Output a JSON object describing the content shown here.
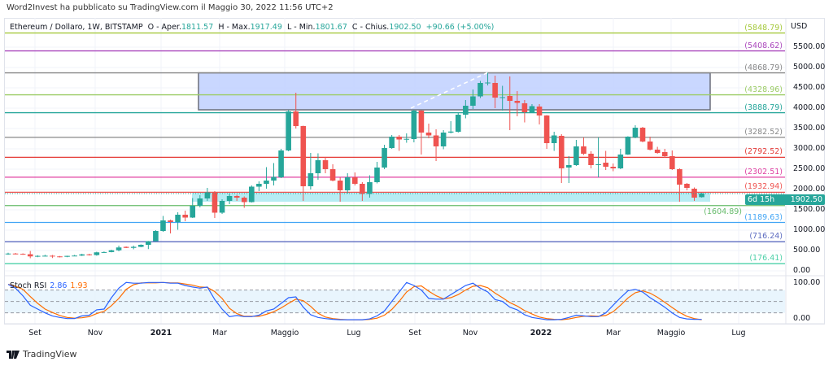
{
  "header": {
    "published": "Word2Invest ha pubblicato su TradingView.com il Maggio 30, 2022 11:56 UTC+2"
  },
  "legend": {
    "symbol": "Ethereum / Dollaro, 1W, BITSTAMP",
    "open_label": "O - Aper.",
    "open": "1811.57",
    "high_label": "H - Max.",
    "high": "1917.49",
    "low_label": "L - Min.",
    "low": "1801.67",
    "close_label": "C - Chius.",
    "close": "1902.50",
    "change": "+90.66 (+5.00%)"
  },
  "price_axis": {
    "currency": "USD",
    "ticks": [
      "5500.00",
      "5000.00",
      "4500.00",
      "4000.00",
      "3500.00",
      "3000.00",
      "2500.00",
      "2000.00",
      "1500.00",
      "1000.00",
      "500.00",
      "0.00"
    ]
  },
  "last_price": {
    "value": "1902.50",
    "countdown": "6d 15h",
    "color": "#26a69a"
  },
  "levels": [
    {
      "label": "(5848.79)",
      "value": 5848.79,
      "color": "#a5c93c"
    },
    {
      "label": "(5408.62)",
      "value": 5408.62,
      "color": "#ab47bc"
    },
    {
      "label": "(4868.79)",
      "value": 4868.79,
      "color": "#888888"
    },
    {
      "label": "(4328.96)",
      "value": 4328.96,
      "color": "#9ccc65"
    },
    {
      "label": "(3888.79)",
      "value": 3888.79,
      "color": "#26a69a"
    },
    {
      "label": "(3282.52)",
      "value": 3282.52,
      "color": "#888888"
    },
    {
      "label": "(2792.52)",
      "value": 2792.52,
      "color": "#e53935"
    },
    {
      "label": "(2302.51)",
      "value": 2302.51,
      "color": "#e040a0"
    },
    {
      "label": "(1932.94)",
      "value": 1932.94,
      "color": "#ef5350"
    },
    {
      "label": "(1604.89)",
      "value": 1604.89,
      "color": "#66bb6a"
    },
    {
      "label": "(1189.63)",
      "value": 1189.63,
      "color": "#42a5f5"
    },
    {
      "label": "(716.24)",
      "value": 716.24,
      "color": "#5c6bc0"
    },
    {
      "label": "(176.41)",
      "value": 176.41,
      "color": "#4dd0a8"
    }
  ],
  "time_axis": [
    "Set",
    "Nov",
    "2021",
    "Mar",
    "Maggio",
    "Lug",
    "Set",
    "Nov",
    "2022",
    "Mar",
    "Maggio",
    "Lug"
  ],
  "rsi": {
    "label": "Stoch RSI",
    "k": "2.86",
    "d": "1.93",
    "ticks": [
      "100.00",
      "0.00"
    ],
    "k_color": "#2962ff",
    "d_color": "#ff6d00"
  },
  "brand": {
    "name": "TradingView"
  },
  "chart_data": {
    "type": "candlestick",
    "symbol": "Ethereum / Dollaro",
    "interval": "1W",
    "ylim": [
      0,
      5500
    ],
    "colors": {
      "up": "#26a69a",
      "down": "#ef5350"
    },
    "zones": [
      {
        "from": 3960,
        "to": 4868.79,
        "color": "#c3d3ff"
      },
      {
        "from": 1700,
        "to": 1932.94,
        "color": "#b2ebf2"
      }
    ],
    "ohlc": [
      [
        415,
        445,
        395,
        425
      ],
      [
        425,
        440,
        405,
        418
      ],
      [
        418,
        430,
        395,
        408
      ],
      [
        408,
        488,
        310,
        355
      ],
      [
        355,
        385,
        335,
        368
      ],
      [
        368,
        395,
        355,
        372
      ],
      [
        372,
        390,
        315,
        355
      ],
      [
        355,
        365,
        330,
        346
      ],
      [
        346,
        372,
        335,
        368
      ],
      [
        368,
        392,
        360,
        375
      ],
      [
        375,
        420,
        365,
        405
      ],
      [
        405,
        420,
        375,
        388
      ],
      [
        388,
        470,
        372,
        455
      ],
      [
        455,
        475,
        440,
        462
      ],
      [
        462,
        520,
        455,
        505
      ],
      [
        505,
        620,
        480,
        575
      ],
      [
        590,
        600,
        560,
        565
      ],
      [
        565,
        620,
        530,
        590
      ],
      [
        590,
        650,
        580,
        640
      ],
      [
        640,
        735,
        535,
        730
      ],
      [
        730,
        1000,
        715,
        980
      ],
      [
        980,
        1350,
        960,
        1240
      ],
      [
        1240,
        1260,
        920,
        1200
      ],
      [
        1200,
        1440,
        1010,
        1380
      ],
      [
        1380,
        1480,
        1220,
        1310
      ],
      [
        1310,
        1790,
        1300,
        1600
      ],
      [
        1600,
        1860,
        1560,
        1780
      ],
      [
        1780,
        2040,
        1720,
        1930
      ],
      [
        1930,
        1960,
        1300,
        1430
      ],
      [
        1430,
        1760,
        1400,
        1720
      ],
      [
        1720,
        1900,
        1640,
        1840
      ],
      [
        1840,
        1870,
        1720,
        1800
      ],
      [
        1800,
        1830,
        1550,
        1690
      ],
      [
        1690,
        2100,
        1680,
        2070
      ],
      [
        2070,
        2200,
        1960,
        2140
      ],
      [
        2140,
        2550,
        2020,
        2220
      ],
      [
        2220,
        2650,
        2100,
        2310
      ],
      [
        2300,
        3000,
        2280,
        2960
      ],
      [
        2960,
        3960,
        2940,
        3920
      ],
      [
        3920,
        4380,
        3500,
        3560
      ],
      [
        3560,
        3570,
        1720,
        2080
      ],
      [
        2080,
        2900,
        2000,
        2400
      ],
      [
        2400,
        2890,
        2240,
        2720
      ],
      [
        2720,
        2800,
        2400,
        2500
      ],
      [
        2500,
        2620,
        2200,
        2220
      ],
      [
        2220,
        2300,
        1700,
        1980
      ],
      [
        1980,
        2400,
        1900,
        2300
      ],
      [
        2300,
        2420,
        2100,
        2140
      ],
      [
        2140,
        2180,
        1720,
        1890
      ],
      [
        1890,
        2350,
        1800,
        2180
      ],
      [
        2180,
        2680,
        2150,
        2540
      ],
      [
        2540,
        3100,
        2500,
        3020
      ],
      [
        3020,
        3340,
        3000,
        3300
      ],
      [
        3300,
        3340,
        2950,
        3230
      ],
      [
        3230,
        3380,
        3150,
        3245
      ],
      [
        3240,
        3960,
        3160,
        3940
      ],
      [
        3940,
        3950,
        2860,
        3400
      ],
      [
        3400,
        3620,
        3260,
        3330
      ],
      [
        3330,
        3480,
        2700,
        3060
      ],
      [
        3060,
        3460,
        2990,
        3400
      ],
      [
        3400,
        3680,
        3380,
        3425
      ],
      [
        3420,
        3900,
        3400,
        3840
      ],
      [
        3840,
        4200,
        3750,
        4060
      ],
      [
        4060,
        4460,
        3980,
        4290
      ],
      [
        4290,
        4670,
        4250,
        4620
      ],
      [
        4620,
        4870,
        4560,
        4630
      ],
      [
        4620,
        4800,
        4000,
        4260
      ],
      [
        4260,
        4550,
        3940,
        4270
      ],
      [
        4300,
        4780,
        3460,
        4180
      ],
      [
        4180,
        4420,
        3800,
        4130
      ],
      [
        4120,
        4200,
        3650,
        3900
      ],
      [
        3900,
        4100,
        3880,
        4050
      ],
      [
        4040,
        4100,
        3600,
        3820
      ],
      [
        3820,
        3830,
        3000,
        3140
      ],
      [
        3140,
        3420,
        2950,
        3330
      ],
      [
        3320,
        3360,
        2160,
        2520
      ],
      [
        2540,
        2820,
        2160,
        2600
      ],
      [
        2600,
        3220,
        2580,
        3060
      ],
      [
        3060,
        3280,
        2850,
        2880
      ],
      [
        2880,
        2940,
        2520,
        2600
      ],
      [
        2600,
        3280,
        2300,
        2620
      ],
      [
        2660,
        2950,
        2480,
        2560
      ],
      [
        2560,
        2640,
        2450,
        2520
      ],
      [
        2520,
        3000,
        2500,
        2860
      ],
      [
        2860,
        3310,
        2850,
        3300
      ],
      [
        3280,
        3580,
        3260,
        3520
      ],
      [
        3520,
        3540,
        3160,
        3180
      ],
      [
        3180,
        3300,
        2960,
        2980
      ],
      [
        2980,
        3050,
        2880,
        2900
      ],
      [
        2920,
        3000,
        2780,
        2820
      ],
      [
        2820,
        2960,
        2480,
        2500
      ],
      [
        2500,
        2520,
        1700,
        2120
      ],
      [
        2140,
        2160,
        1980,
        2040
      ],
      [
        2020,
        2050,
        1720,
        1800
      ],
      [
        1811.57,
        1917.49,
        1801.67,
        1902.5
      ]
    ],
    "stoch_rsi": {
      "ylim": [
        0,
        100
      ],
      "bands": [
        20,
        50,
        80
      ],
      "k": [
        95,
        85,
        65,
        40,
        30,
        20,
        12,
        8,
        5,
        5,
        12,
        14,
        28,
        30,
        60,
        85,
        100,
        98,
        98,
        100,
        100,
        100,
        98,
        98,
        92,
        88,
        85,
        88,
        55,
        30,
        10,
        13,
        10,
        10,
        14,
        25,
        30,
        45,
        60,
        62,
        35,
        15,
        8,
        5,
        3,
        2,
        2,
        2,
        2,
        4,
        12,
        25,
        50,
        75,
        100,
        92,
        80,
        58,
        56,
        56,
        68,
        80,
        92,
        98,
        85,
        75,
        55,
        50,
        35,
        28,
        15,
        8,
        5,
        2,
        2,
        3,
        8,
        14,
        12,
        10,
        10,
        20,
        40,
        60,
        78,
        82,
        75,
        60,
        48,
        35,
        20,
        8,
        4,
        3,
        2.86
      ],
      "d": [
        95,
        90,
        82,
        63,
        45,
        30,
        21,
        13,
        8,
        6,
        7,
        10,
        18,
        24,
        39,
        58,
        82,
        94,
        99,
        99,
        99,
        100,
        99,
        99,
        96,
        93,
        88,
        87,
        76,
        58,
        32,
        18,
        11,
        11,
        11,
        16,
        23,
        33,
        45,
        56,
        52,
        37,
        19,
        9,
        5,
        3,
        2,
        2,
        2,
        3,
        6,
        14,
        29,
        50,
        75,
        89,
        91,
        77,
        65,
        57,
        60,
        68,
        80,
        90,
        92,
        86,
        72,
        60,
        47,
        38,
        26,
        17,
        9,
        5,
        3,
        2,
        4,
        8,
        11,
        12,
        11,
        13,
        23,
        40,
        59,
        73,
        78,
        72,
        61,
        48,
        34,
        21,
        11,
        5,
        1.93
      ]
    }
  }
}
